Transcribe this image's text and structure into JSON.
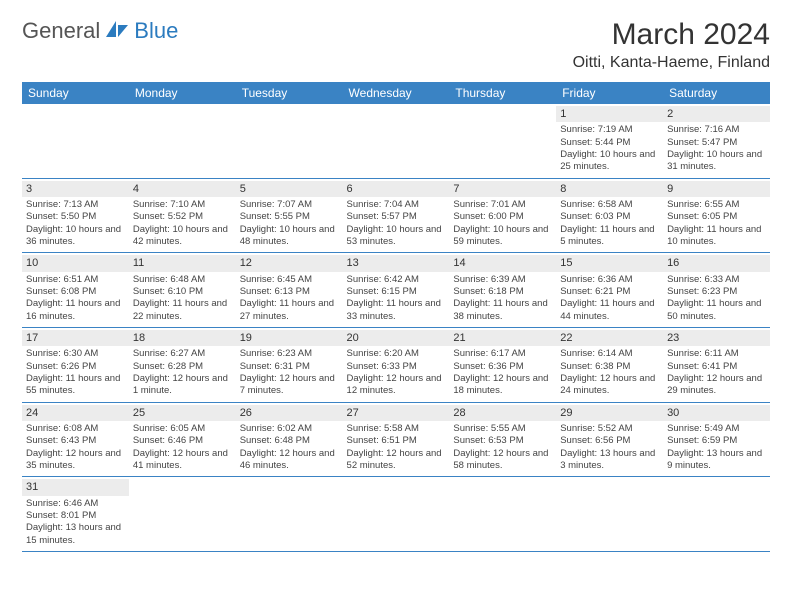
{
  "logo": {
    "part1": "General",
    "part2": "Blue"
  },
  "title": "March 2024",
  "location": "Oitti, Kanta-Haeme, Finland",
  "colors": {
    "header_bg": "#3a83c4",
    "header_text": "#ffffff",
    "daynum_bg": "#ececec",
    "border": "#3a83c4",
    "logo_blue": "#2b7bbf",
    "logo_gray": "#555555"
  },
  "weekdays": [
    "Sunday",
    "Monday",
    "Tuesday",
    "Wednesday",
    "Thursday",
    "Friday",
    "Saturday"
  ],
  "weeks": [
    [
      null,
      null,
      null,
      null,
      null,
      {
        "n": "1",
        "sr": "7:19 AM",
        "ss": "5:44 PM",
        "dl": "10 hours and 25 minutes."
      },
      {
        "n": "2",
        "sr": "7:16 AM",
        "ss": "5:47 PM",
        "dl": "10 hours and 31 minutes."
      }
    ],
    [
      {
        "n": "3",
        "sr": "7:13 AM",
        "ss": "5:50 PM",
        "dl": "10 hours and 36 minutes."
      },
      {
        "n": "4",
        "sr": "7:10 AM",
        "ss": "5:52 PM",
        "dl": "10 hours and 42 minutes."
      },
      {
        "n": "5",
        "sr": "7:07 AM",
        "ss": "5:55 PM",
        "dl": "10 hours and 48 minutes."
      },
      {
        "n": "6",
        "sr": "7:04 AM",
        "ss": "5:57 PM",
        "dl": "10 hours and 53 minutes."
      },
      {
        "n": "7",
        "sr": "7:01 AM",
        "ss": "6:00 PM",
        "dl": "10 hours and 59 minutes."
      },
      {
        "n": "8",
        "sr": "6:58 AM",
        "ss": "6:03 PM",
        "dl": "11 hours and 5 minutes."
      },
      {
        "n": "9",
        "sr": "6:55 AM",
        "ss": "6:05 PM",
        "dl": "11 hours and 10 minutes."
      }
    ],
    [
      {
        "n": "10",
        "sr": "6:51 AM",
        "ss": "6:08 PM",
        "dl": "11 hours and 16 minutes."
      },
      {
        "n": "11",
        "sr": "6:48 AM",
        "ss": "6:10 PM",
        "dl": "11 hours and 22 minutes."
      },
      {
        "n": "12",
        "sr": "6:45 AM",
        "ss": "6:13 PM",
        "dl": "11 hours and 27 minutes."
      },
      {
        "n": "13",
        "sr": "6:42 AM",
        "ss": "6:15 PM",
        "dl": "11 hours and 33 minutes."
      },
      {
        "n": "14",
        "sr": "6:39 AM",
        "ss": "6:18 PM",
        "dl": "11 hours and 38 minutes."
      },
      {
        "n": "15",
        "sr": "6:36 AM",
        "ss": "6:21 PM",
        "dl": "11 hours and 44 minutes."
      },
      {
        "n": "16",
        "sr": "6:33 AM",
        "ss": "6:23 PM",
        "dl": "11 hours and 50 minutes."
      }
    ],
    [
      {
        "n": "17",
        "sr": "6:30 AM",
        "ss": "6:26 PM",
        "dl": "11 hours and 55 minutes."
      },
      {
        "n": "18",
        "sr": "6:27 AM",
        "ss": "6:28 PM",
        "dl": "12 hours and 1 minute."
      },
      {
        "n": "19",
        "sr": "6:23 AM",
        "ss": "6:31 PM",
        "dl": "12 hours and 7 minutes."
      },
      {
        "n": "20",
        "sr": "6:20 AM",
        "ss": "6:33 PM",
        "dl": "12 hours and 12 minutes."
      },
      {
        "n": "21",
        "sr": "6:17 AM",
        "ss": "6:36 PM",
        "dl": "12 hours and 18 minutes."
      },
      {
        "n": "22",
        "sr": "6:14 AM",
        "ss": "6:38 PM",
        "dl": "12 hours and 24 minutes."
      },
      {
        "n": "23",
        "sr": "6:11 AM",
        "ss": "6:41 PM",
        "dl": "12 hours and 29 minutes."
      }
    ],
    [
      {
        "n": "24",
        "sr": "6:08 AM",
        "ss": "6:43 PM",
        "dl": "12 hours and 35 minutes."
      },
      {
        "n": "25",
        "sr": "6:05 AM",
        "ss": "6:46 PM",
        "dl": "12 hours and 41 minutes."
      },
      {
        "n": "26",
        "sr": "6:02 AM",
        "ss": "6:48 PM",
        "dl": "12 hours and 46 minutes."
      },
      {
        "n": "27",
        "sr": "5:58 AM",
        "ss": "6:51 PM",
        "dl": "12 hours and 52 minutes."
      },
      {
        "n": "28",
        "sr": "5:55 AM",
        "ss": "6:53 PM",
        "dl": "12 hours and 58 minutes."
      },
      {
        "n": "29",
        "sr": "5:52 AM",
        "ss": "6:56 PM",
        "dl": "13 hours and 3 minutes."
      },
      {
        "n": "30",
        "sr": "5:49 AM",
        "ss": "6:59 PM",
        "dl": "13 hours and 9 minutes."
      }
    ],
    [
      {
        "n": "31",
        "sr": "6:46 AM",
        "ss": "8:01 PM",
        "dl": "13 hours and 15 minutes."
      },
      null,
      null,
      null,
      null,
      null,
      null
    ]
  ],
  "labels": {
    "sunrise": "Sunrise:",
    "sunset": "Sunset:",
    "daylight": "Daylight:"
  }
}
